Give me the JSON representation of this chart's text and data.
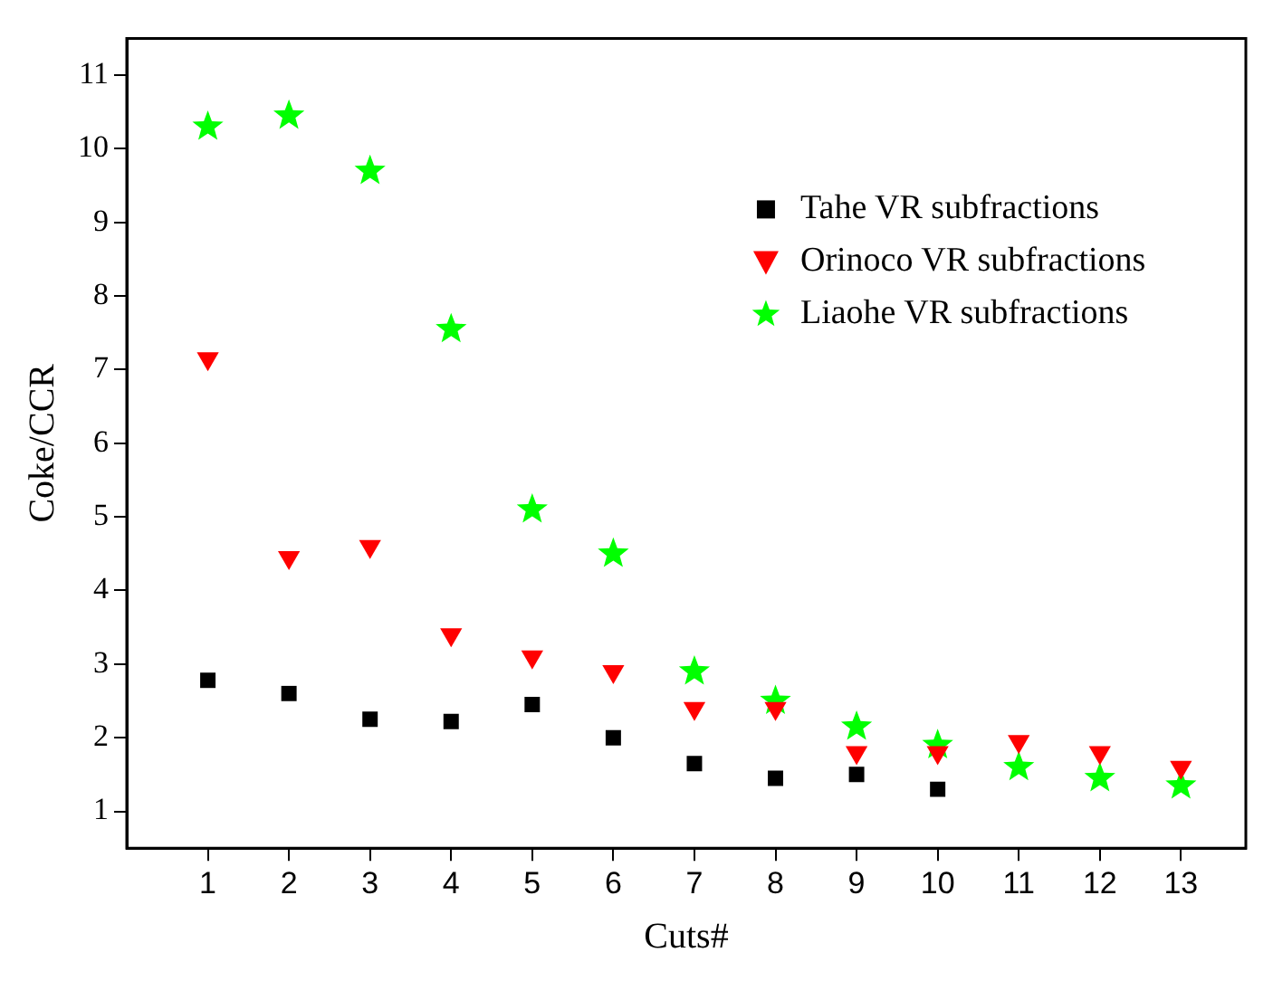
{
  "chart_data": {
    "type": "scatter",
    "xlabel": "Cuts#",
    "ylabel": "Coke/CCR",
    "x": [
      1,
      2,
      3,
      4,
      5,
      6,
      7,
      8,
      9,
      10,
      11,
      12,
      13
    ],
    "xlim": [
      0,
      13.8
    ],
    "xticks": [
      1,
      2,
      3,
      4,
      5,
      6,
      7,
      8,
      9,
      10,
      11,
      12,
      13
    ],
    "ylim": [
      0.5,
      11.5
    ],
    "yticks": [
      1,
      2,
      3,
      4,
      5,
      6,
      7,
      8,
      9,
      10,
      11
    ],
    "grid": false,
    "legend": "top right",
    "series": [
      {
        "name": "Tahe VR subfractions",
        "color": "#000000",
        "marker": "square",
        "values": [
          2.78,
          2.6,
          2.25,
          2.22,
          2.45,
          2.0,
          1.65,
          1.45,
          1.5,
          1.3,
          null,
          null,
          null
        ]
      },
      {
        "name": "Orinoco VR subfractions",
        "color": "#ff0000",
        "marker": "triangle",
        "values": [
          7.15,
          4.45,
          4.6,
          3.4,
          3.1,
          2.9,
          2.4,
          2.4,
          1.8,
          1.8,
          1.95,
          1.8,
          1.6
        ]
      },
      {
        "name": "Liaohe VR subfractions",
        "color": "#00ff00",
        "marker": "star",
        "values": [
          10.3,
          10.45,
          9.7,
          7.55,
          5.1,
          4.5,
          2.9,
          2.5,
          2.15,
          1.9,
          1.6,
          1.45,
          1.35
        ]
      }
    ]
  }
}
